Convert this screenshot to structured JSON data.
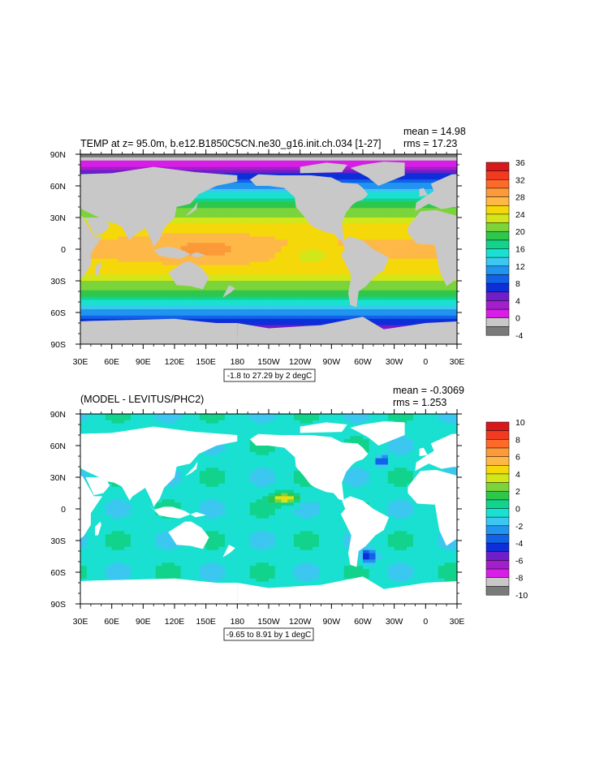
{
  "colors": {
    "land": "#c8c8c8",
    "white_land": "#ffffff",
    "frame": "#000000"
  },
  "chart_data": [
    {
      "type": "heatmap",
      "title": "TEMP at z=  95.0m, b.e12.B1850C5CN.ne30_g16.init.ch.034 [1-27]",
      "mean_label": "mean = 14.98",
      "rms_label": "rms = 17.23",
      "range_label": "-1.8 to 27.29 by 2 degC",
      "xticks": [
        "30E",
        "60E",
        "90E",
        "120E",
        "150E",
        "180",
        "150W",
        "120W",
        "90W",
        "60W",
        "30W",
        "0",
        "30E"
      ],
      "yticks": [
        "90N",
        "60N",
        "30N",
        "0",
        "30S",
        "60S",
        "90S"
      ],
      "xlim": [
        30,
        390
      ],
      "ylim": [
        -90,
        90
      ],
      "colorbar_labels": [
        "36",
        "32",
        "28",
        "24",
        "20",
        "16",
        "12",
        "8",
        "4",
        "0",
        "-4"
      ],
      "colorbar_colors": [
        "#d7191c",
        "#f03b20",
        "#fd6a2a",
        "#fc9a3a",
        "#fdb848",
        "#f5d80a",
        "#d2e61a",
        "#7ad43a",
        "#2fc64c",
        "#12d38c",
        "#19e0d0",
        "#3bc7ef",
        "#2094ee",
        "#1162e8",
        "#0c2fd9",
        "#6f1ec9",
        "#a31fcc",
        "#d81ee6",
        "#c8c8c8",
        "#7a7a7a"
      ],
      "levels": [
        -4,
        -2,
        0,
        2,
        4,
        6,
        8,
        10,
        12,
        14,
        16,
        18,
        20,
        22,
        24,
        26,
        28,
        30,
        32,
        34,
        36
      ]
    },
    {
      "type": "heatmap",
      "title": "(MODEL - LEVITUS/PHC2)",
      "mean_label": "mean = -0.3069",
      "rms_label": "rms = 1.253",
      "range_label": "-9.65 to 8.91 by 1 degC",
      "xticks": [
        "30E",
        "60E",
        "90E",
        "120E",
        "150E",
        "180",
        "150W",
        "120W",
        "90W",
        "60W",
        "30W",
        "0",
        "30E"
      ],
      "yticks": [
        "90N",
        "60N",
        "30N",
        "0",
        "30S",
        "60S",
        "90S"
      ],
      "xlim": [
        30,
        390
      ],
      "ylim": [
        -90,
        90
      ],
      "colorbar_labels": [
        "10",
        "8",
        "6",
        "4",
        "2",
        "0",
        "-2",
        "-4",
        "-6",
        "-8",
        "-10"
      ],
      "colorbar_colors": [
        "#d7191c",
        "#f03b20",
        "#fd6a2a",
        "#fc9a3a",
        "#fdb848",
        "#f5d80a",
        "#d2e61a",
        "#7ad43a",
        "#2fc64c",
        "#12d38c",
        "#19e0d0",
        "#3bc7ef",
        "#2094ee",
        "#1162e8",
        "#0c2fd9",
        "#6f1ec9",
        "#a31fcc",
        "#d81ee6",
        "#c8c8c8",
        "#7a7a7a"
      ],
      "levels": [
        -10,
        -9,
        -8,
        -7,
        -6,
        -5,
        -4,
        -3,
        -2,
        -1,
        0,
        1,
        2,
        3,
        4,
        5,
        6,
        7,
        8,
        9,
        10
      ]
    }
  ]
}
